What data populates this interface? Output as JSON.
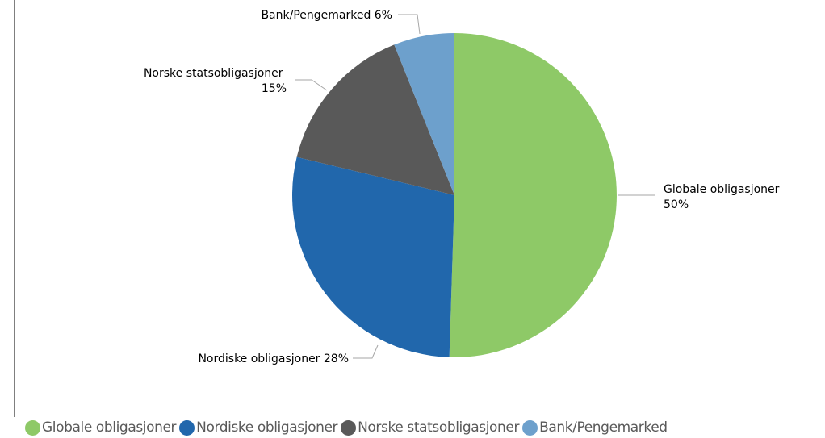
{
  "chart_data": {
    "type": "pie",
    "title": "",
    "slices": [
      {
        "name": "Globale obligasjoner",
        "value": 50,
        "label": [
          "Globale obligasjoner",
          "50%"
        ],
        "color": "#8ec967"
      },
      {
        "name": "Nordiske obligasjoner",
        "value": 28,
        "label": [
          "Nordiske obligasjoner 28%"
        ],
        "color": "#2167ac"
      },
      {
        "name": "Norske statsobligasjoner",
        "value": 15,
        "label": [
          "Norske statsobligasjoner",
          "15%"
        ],
        "color": "#595959"
      },
      {
        "name": "Bank/Pengemarked",
        "value": 6,
        "label": [
          "Bank/Pengemarked 6%"
        ],
        "color": "#6da0cc"
      }
    ],
    "legend": {
      "position": "bottom-left",
      "entries": [
        "Globale obligasjoner",
        "Nordiske obligasjoner",
        "Norske statsobligasjoner",
        "Bank/Pengemarked"
      ]
    }
  }
}
